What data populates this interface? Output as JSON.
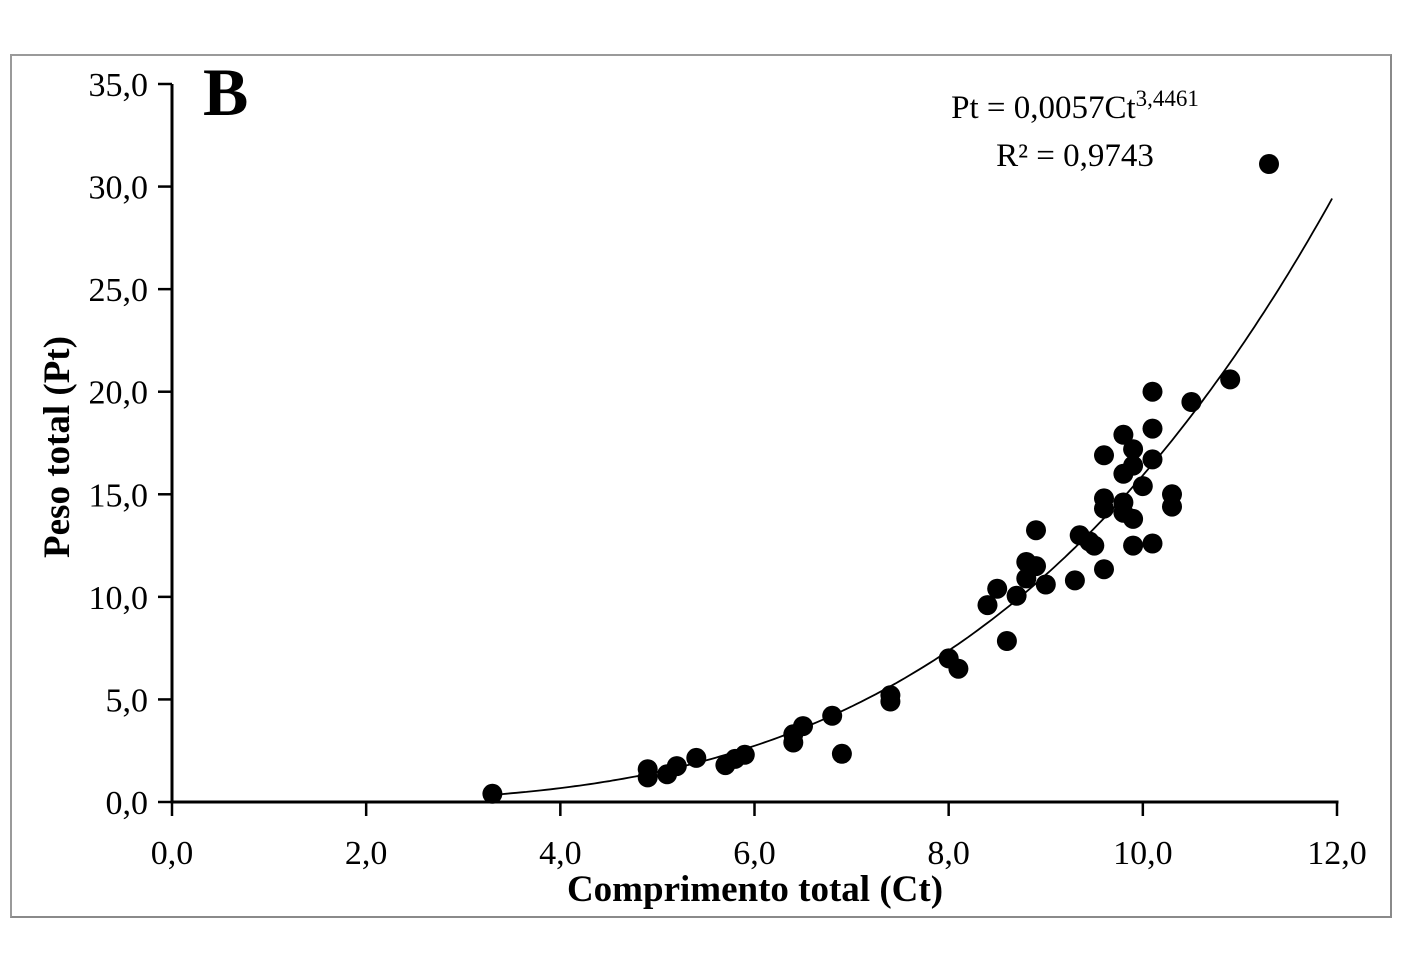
{
  "figure": {
    "panel_label": "B",
    "equation_base": "Pt = 0,0057Ct",
    "equation_exponent": "3,4461",
    "r_squared_text": "R² = 0,9743",
    "xlabel": "Comprimento total (Ct)",
    "ylabel": "Peso total (Pt)"
  },
  "style": {
    "frame_border_color": "#9a9a9a",
    "axis_color": "#000000",
    "point_color": "#000000",
    "curve_color": "#000000",
    "background_color": "#ffffff"
  },
  "chart_data": {
    "type": "scatter",
    "title": "",
    "xlabel": "Comprimento total (Ct)",
    "ylabel": "Peso total (Pt)",
    "xlim": [
      0,
      12
    ],
    "ylim": [
      0,
      35
    ],
    "grid": false,
    "legend": false,
    "x_ticks": [
      0,
      2,
      4,
      6,
      8,
      10,
      12
    ],
    "x_tick_labels": [
      "0,0",
      "2,0",
      "4,0",
      "6,0",
      "8,0",
      "10,0",
      "12,0"
    ],
    "y_ticks": [
      0,
      5,
      10,
      15,
      20,
      25,
      30,
      35
    ],
    "y_tick_labels": [
      "0,0",
      "5,0",
      "10,0",
      "15,0",
      "20,0",
      "25,0",
      "30,0",
      "35,0"
    ],
    "points": [
      [
        3.3,
        0.4
      ],
      [
        4.9,
        1.2
      ],
      [
        4.9,
        1.6
      ],
      [
        5.1,
        1.35
      ],
      [
        5.2,
        1.75
      ],
      [
        5.4,
        2.15
      ],
      [
        5.7,
        1.8
      ],
      [
        5.8,
        2.1
      ],
      [
        5.9,
        2.3
      ],
      [
        6.4,
        2.9
      ],
      [
        6.4,
        3.3
      ],
      [
        6.5,
        3.7
      ],
      [
        6.8,
        4.2
      ],
      [
        6.9,
        2.35
      ],
      [
        7.4,
        4.9
      ],
      [
        7.4,
        5.2
      ],
      [
        8.0,
        7.0
      ],
      [
        8.1,
        6.5
      ],
      [
        8.4,
        9.6
      ],
      [
        8.5,
        10.4
      ],
      [
        8.6,
        7.85
      ],
      [
        8.7,
        10.05
      ],
      [
        8.8,
        10.9
      ],
      [
        8.8,
        11.7
      ],
      [
        8.9,
        11.5
      ],
      [
        8.9,
        13.25
      ],
      [
        9.0,
        10.6
      ],
      [
        9.3,
        10.8
      ],
      [
        9.35,
        13.0
      ],
      [
        9.45,
        12.7
      ],
      [
        9.5,
        12.5
      ],
      [
        9.6,
        11.35
      ],
      [
        9.6,
        14.3
      ],
      [
        9.6,
        14.8
      ],
      [
        9.6,
        16.9
      ],
      [
        9.8,
        14.1
      ],
      [
        9.8,
        14.6
      ],
      [
        9.8,
        16.0
      ],
      [
        9.8,
        17.9
      ],
      [
        9.9,
        12.5
      ],
      [
        9.9,
        13.8
      ],
      [
        9.9,
        16.4
      ],
      [
        9.9,
        17.2
      ],
      [
        10.0,
        15.4
      ],
      [
        10.1,
        12.6
      ],
      [
        10.1,
        16.7
      ],
      [
        10.1,
        18.2
      ],
      [
        10.1,
        20.0
      ],
      [
        10.3,
        14.4
      ],
      [
        10.3,
        15.0
      ],
      [
        10.5,
        19.5
      ],
      [
        10.9,
        20.6
      ],
      [
        11.3,
        31.1
      ]
    ],
    "trendline": {
      "type": "power",
      "equation": "Pt = 0,0057Ct^3,4461",
      "a": 0.0057,
      "b": 3.4461,
      "r2": 0.9743,
      "x_start": 3.3,
      "x_end": 11.97
    }
  }
}
